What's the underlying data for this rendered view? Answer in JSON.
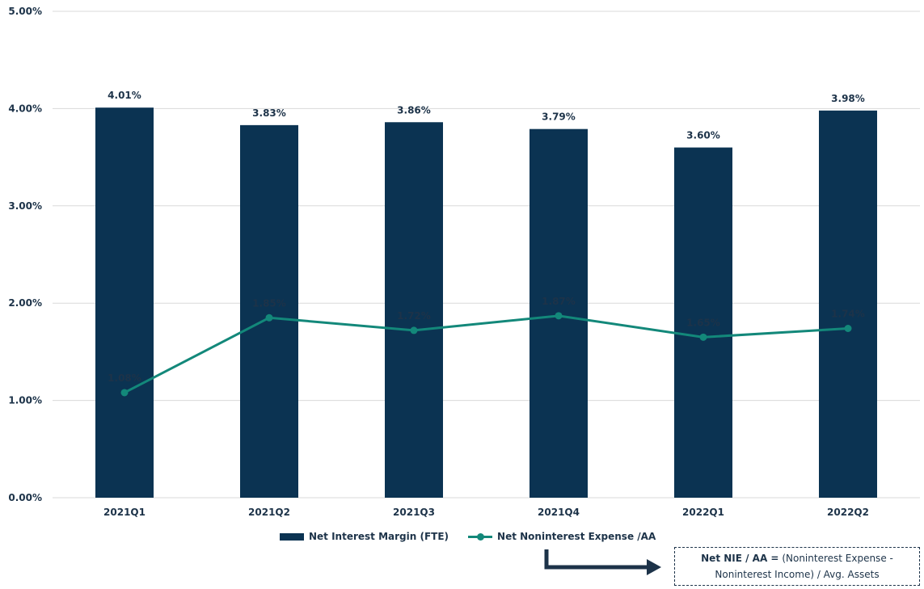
{
  "chart_data": {
    "type": "bar",
    "categories": [
      "2021Q1",
      "2021Q2",
      "2021Q3",
      "2021Q4",
      "2022Q1",
      "2022Q2"
    ],
    "series": [
      {
        "name": "Net Interest Margin (FTE)",
        "type": "bar",
        "values": [
          4.01,
          3.83,
          3.86,
          3.79,
          3.6,
          3.98
        ],
        "labels": [
          "4.01%",
          "3.83%",
          "3.86%",
          "3.79%",
          "3.60%",
          "3.98%"
        ]
      },
      {
        "name": "Net Noninterest Expense /AA",
        "type": "line",
        "values": [
          1.08,
          1.85,
          1.72,
          1.87,
          1.65,
          1.74
        ],
        "labels": [
          "1.08%",
          "1.85%",
          "1.72%",
          "1.87%",
          "1.65%",
          "1.74%"
        ]
      }
    ],
    "ylim": [
      0,
      5
    ],
    "yticks": [
      "0.00%",
      "1.00%",
      "2.00%",
      "3.00%",
      "4.00%",
      "5.00%"
    ],
    "grid": true,
    "legend_position": "bottom",
    "colors": {
      "bar": "#0b3352",
      "line": "#13887a",
      "text": "#1d3349",
      "grid": "#d9d9d9"
    }
  },
  "note": {
    "bold": "Net NIE / AA =",
    "line1": " (Noninterest Expense -",
    "line2": "Noninterest Income) / Avg. Assets"
  }
}
